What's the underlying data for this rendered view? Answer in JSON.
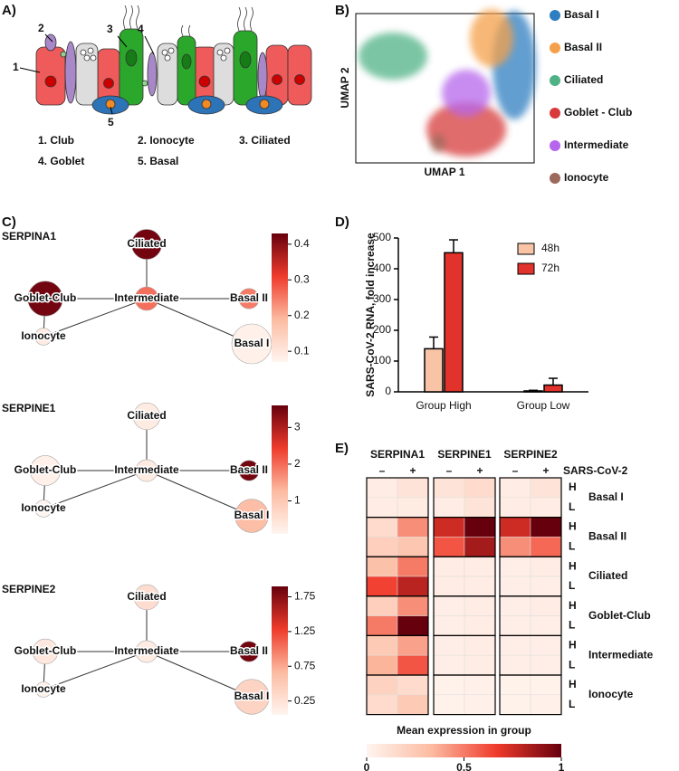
{
  "panel_labels": [
    "A)",
    "B)",
    "C)",
    "D)",
    "E)"
  ],
  "diagram": {
    "callouts": [
      "1",
      "2",
      "3",
      "4",
      "5"
    ],
    "legend": [
      "1. Club",
      "2. Ionocyte",
      "3. Ciliated",
      "4. Goblet",
      "5. Basal"
    ]
  },
  "chart_data": [
    {
      "type": "scatter",
      "x_label": "UMAP 1",
      "y_label": "UMAP 2",
      "series": [
        {
          "name": "Basal I",
          "color": "#2f7ec1"
        },
        {
          "name": "Basal II",
          "color": "#f5a04a"
        },
        {
          "name": "Ciliated",
          "color": "#4fb286"
        },
        {
          "name": "Goblet - Club",
          "color": "#d83a3a"
        },
        {
          "name": "Intermediate",
          "color": "#b666ec"
        },
        {
          "name": "Ionocyte",
          "color": "#9b6a5c"
        }
      ]
    },
    {
      "type": "network",
      "title": "SERPINA1",
      "nodes": [
        "Ciliated",
        "Goblet-Club",
        "Intermediate",
        "Basal II",
        "Ionocyte",
        "Basal I"
      ],
      "values": [
        0.42,
        0.42,
        0.26,
        0.25,
        0.09,
        0.08
      ],
      "sizes": [
        0.7,
        0.85,
        0.5,
        0.4,
        0.3,
        1.0
      ],
      "edges": [
        [
          "Ciliated",
          "Intermediate"
        ],
        [
          "Goblet-Club",
          "Intermediate"
        ],
        [
          "Intermediate",
          "Basal II"
        ],
        [
          "Intermediate",
          "Basal I"
        ],
        [
          "Goblet-Club",
          "Ionocyte"
        ],
        [
          "Ionocyte",
          "Intermediate"
        ]
      ],
      "clim": [
        0.07,
        0.43
      ],
      "cticks": [
        0.1,
        0.2,
        0.3,
        0.4
      ],
      "colormap": [
        "#fff5f0",
        "#fcbba1",
        "#ef3b2c",
        "#67000d"
      ]
    },
    {
      "type": "network",
      "title": "SERPINE1",
      "nodes": [
        "Ciliated",
        "Goblet-Club",
        "Intermediate",
        "Basal II",
        "Ionocyte",
        "Basal I"
      ],
      "values": [
        0.3,
        0.2,
        0.3,
        3.5,
        0.1,
        1.2
      ],
      "sizes": [
        0.6,
        0.7,
        0.45,
        0.4,
        0.3,
        0.8
      ],
      "edges": [
        [
          "Ciliated",
          "Intermediate"
        ],
        [
          "Goblet-Club",
          "Intermediate"
        ],
        [
          "Intermediate",
          "Basal II"
        ],
        [
          "Intermediate",
          "Basal I"
        ],
        [
          "Goblet-Club",
          "Ionocyte"
        ],
        [
          "Ionocyte",
          "Intermediate"
        ]
      ],
      "clim": [
        0.1,
        3.6
      ],
      "cticks": [
        1,
        2,
        3
      ],
      "colormap": [
        "#fff5f0",
        "#fcbba1",
        "#ef3b2c",
        "#67000d"
      ]
    },
    {
      "type": "network",
      "title": "SERPINE2",
      "nodes": [
        "Ciliated",
        "Goblet-Club",
        "Intermediate",
        "Basal II",
        "Ionocyte",
        "Basal I"
      ],
      "values": [
        0.3,
        0.2,
        0.15,
        1.85,
        0.1,
        0.4
      ],
      "sizes": [
        0.55,
        0.55,
        0.45,
        0.4,
        0.25,
        0.85
      ],
      "edges": [
        [
          "Ciliated",
          "Intermediate"
        ],
        [
          "Goblet-Club",
          "Intermediate"
        ],
        [
          "Intermediate",
          "Basal II"
        ],
        [
          "Intermediate",
          "Basal I"
        ],
        [
          "Goblet-Club",
          "Ionocyte"
        ],
        [
          "Ionocyte",
          "Intermediate"
        ]
      ],
      "clim": [
        0.05,
        1.9
      ],
      "cticks": [
        0.25,
        0.75,
        1.25,
        1.75
      ],
      "colormap": [
        "#fff5f0",
        "#fcbba1",
        "#ef3b2c",
        "#67000d"
      ]
    },
    {
      "type": "bar",
      "y_label": "SARS-CoV-2 RNA, fold increase",
      "categories": [
        "Group High",
        "Group Low"
      ],
      "series": [
        {
          "name": "48h",
          "color": "#f9c3a6",
          "values": [
            140,
            3
          ],
          "errors": [
            38,
            2
          ]
        },
        {
          "name": "72h",
          "color": "#e1322b",
          "values": [
            452,
            22
          ],
          "errors": [
            42,
            22
          ]
        }
      ],
      "ylim": [
        0,
        500
      ],
      "yticks": [
        0,
        100,
        200,
        300,
        400,
        500
      ]
    },
    {
      "type": "heatmap",
      "columns": [
        "SERPINA1",
        "SERPINE1",
        "SERPINE2"
      ],
      "conditions": [
        "–",
        "+"
      ],
      "condition_label": "SARS-CoV-2",
      "rows": [
        "Basal I",
        "Basal II",
        "Ciliated",
        "Goblet-Club",
        "Intermediate",
        "Ionocyte"
      ],
      "levels": [
        "H",
        "L"
      ],
      "values": [
        [
          0.05,
          0.1,
          0.1,
          0.15,
          0.05,
          0.1
        ],
        [
          0.05,
          0.06,
          0.05,
          0.1,
          0.05,
          0.05
        ],
        [
          0.15,
          0.45,
          0.75,
          1.0,
          0.75,
          1.0
        ],
        [
          0.22,
          0.27,
          0.6,
          0.85,
          0.45,
          0.55
        ],
        [
          0.3,
          0.5,
          0.05,
          0.05,
          0.04,
          0.05
        ],
        [
          0.65,
          0.8,
          0.05,
          0.05,
          0.04,
          0.04
        ],
        [
          0.22,
          0.45,
          0.04,
          0.05,
          0.04,
          0.05
        ],
        [
          0.5,
          1.0,
          0.04,
          0.05,
          0.04,
          0.04
        ],
        [
          0.25,
          0.4,
          0.04,
          0.05,
          0.04,
          0.04
        ],
        [
          0.35,
          0.6,
          0.04,
          0.05,
          0.04,
          0.04
        ],
        [
          0.2,
          0.15,
          0.02,
          0.03,
          0.02,
          0.02
        ],
        [
          0.15,
          0.25,
          0.02,
          0.03,
          0.02,
          0.03
        ]
      ],
      "zlim": [
        0,
        1
      ],
      "zticks": [
        0,
        0.5,
        1
      ],
      "colorbar_label": "Mean expression in group",
      "colormap": [
        "#fff5f0",
        "#fcbba1",
        "#ef3b2c",
        "#67000d"
      ]
    }
  ]
}
